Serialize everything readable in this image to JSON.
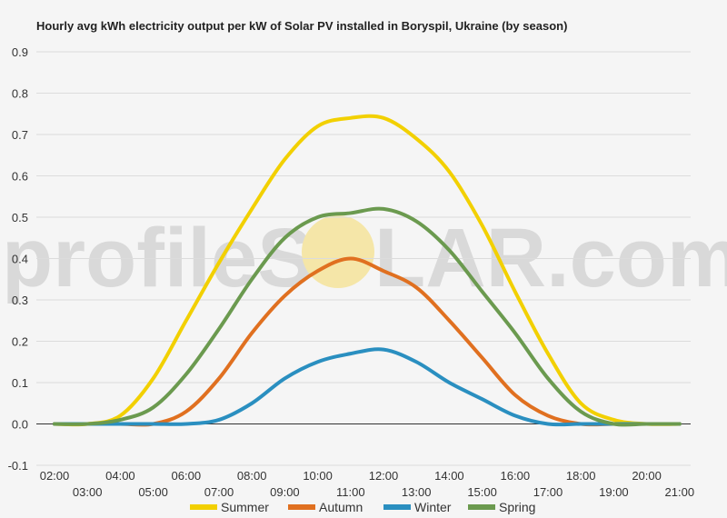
{
  "chart_data": {
    "type": "line",
    "title": "Hourly avg kWh electricity output per kW of Solar PV installed in Boryspil, Ukraine (by season)",
    "xlabel": "",
    "ylabel": "",
    "ylim": [
      -0.1,
      0.9
    ],
    "yticks": [
      "-0.1",
      "0.0",
      "0.1",
      "0.2",
      "0.3",
      "0.4",
      "0.5",
      "0.6",
      "0.7",
      "0.8",
      "0.9"
    ],
    "x_ticks_upper": [
      "02:00",
      "04:00",
      "06:00",
      "08:00",
      "10:00",
      "12:00",
      "14:00",
      "16:00",
      "18:00",
      "20:00"
    ],
    "x_ticks_lower": [
      "03:00",
      "05:00",
      "07:00",
      "09:00",
      "11:00",
      "13:00",
      "15:00",
      "17:00",
      "19:00",
      "21:00"
    ],
    "x": [
      "02:00",
      "03:00",
      "04:00",
      "05:00",
      "06:00",
      "07:00",
      "08:00",
      "09:00",
      "10:00",
      "11:00",
      "12:00",
      "13:00",
      "14:00",
      "15:00",
      "16:00",
      "17:00",
      "18:00",
      "19:00",
      "20:00",
      "21:00"
    ],
    "grid": true,
    "legend_position": "bottom",
    "series": [
      {
        "name": "Summer",
        "color": "#f2d000",
        "values": [
          0.0,
          0.0,
          0.02,
          0.11,
          0.25,
          0.39,
          0.52,
          0.64,
          0.72,
          0.74,
          0.74,
          0.69,
          0.61,
          0.48,
          0.32,
          0.17,
          0.05,
          0.01,
          0.0,
          0.0
        ]
      },
      {
        "name": "Autumn",
        "color": "#e07020",
        "values": [
          0.0,
          0.0,
          0.0,
          0.0,
          0.03,
          0.11,
          0.22,
          0.31,
          0.37,
          0.4,
          0.37,
          0.33,
          0.25,
          0.16,
          0.07,
          0.02,
          0.0,
          0.0,
          0.0,
          0.0
        ]
      },
      {
        "name": "Winter",
        "color": "#2a8fc0",
        "values": [
          0.0,
          0.0,
          0.0,
          0.0,
          0.0,
          0.01,
          0.05,
          0.11,
          0.15,
          0.17,
          0.18,
          0.15,
          0.1,
          0.06,
          0.02,
          0.0,
          0.0,
          0.0,
          0.0,
          0.0
        ]
      },
      {
        "name": "Spring",
        "color": "#6b9a4f",
        "values": [
          0.0,
          0.0,
          0.01,
          0.04,
          0.12,
          0.23,
          0.35,
          0.45,
          0.5,
          0.51,
          0.52,
          0.49,
          0.42,
          0.32,
          0.22,
          0.11,
          0.03,
          0.0,
          0.0,
          0.0
        ]
      }
    ]
  },
  "watermark": {
    "text_left": "profileS",
    "text_right": "LAR.com",
    "sun_color": "#f5e6a8"
  }
}
